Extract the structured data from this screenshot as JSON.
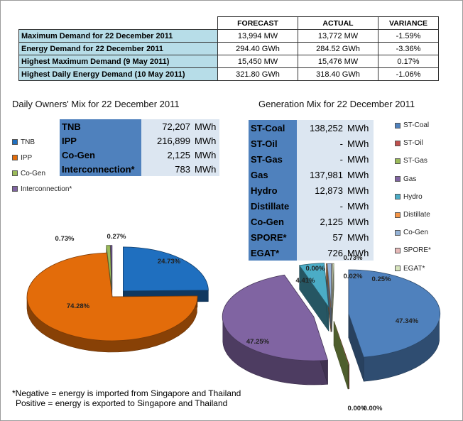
{
  "summary_table": {
    "headers": [
      "",
      "FORECAST",
      "ACTUAL",
      "VARIANCE"
    ],
    "rows": [
      {
        "label": "Maximum Demand for 22 December 2011",
        "forecast": "13,994  MW",
        "actual": "13,772  MW",
        "variance": "-1.59%"
      },
      {
        "label": "Energy Demand for 22 December 2011",
        "forecast": "294.40  GWh",
        "actual": "284.52  GWh",
        "variance": "-3.36%"
      },
      {
        "label": "Highest Maximum Demand (9 May 2011)",
        "forecast": "15,450  MW",
        "actual": "15,476  MW",
        "variance": "0.17%"
      },
      {
        "label": "Highest Daily Energy Demand (10 May 2011)",
        "forecast": "321.80  GWh",
        "actual": "318.40  GWh",
        "variance": "-1.06%"
      }
    ]
  },
  "owners": {
    "title": "Daily Owners' Mix for 22 December 2011",
    "rows": [
      {
        "name": "TNB",
        "value": "72,207",
        "unit": "MWh"
      },
      {
        "name": "IPP",
        "value": "216,899",
        "unit": "MWh"
      },
      {
        "name": "Co-Gen",
        "value": "2,125",
        "unit": "MWh"
      },
      {
        "name": "Interconnection*",
        "value": "783",
        "unit": "MWh"
      }
    ],
    "legend": [
      "TNB",
      "IPP",
      "Co-Gen",
      "Interconnection*"
    ],
    "colors": [
      "#1f6fbf",
      "#e36c0a",
      "#9bbb59",
      "#8064a2"
    ]
  },
  "generation": {
    "title": "Generation Mix for 22 December 2011",
    "rows": [
      {
        "name": "ST-Coal",
        "value": "138,252",
        "unit": "MWh"
      },
      {
        "name": "ST-Oil",
        "value": "-",
        "unit": "MWh"
      },
      {
        "name": "ST-Gas",
        "value": "-",
        "unit": "MWh"
      },
      {
        "name": "Gas",
        "value": "137,981",
        "unit": "MWh"
      },
      {
        "name": "Hydro",
        "value": "12,873",
        "unit": "MWh"
      },
      {
        "name": "Distillate",
        "value": "-",
        "unit": "MWh"
      },
      {
        "name": "Co-Gen",
        "value": "2,125",
        "unit": "MWh"
      },
      {
        "name": "SPORE*",
        "value": "57",
        "unit": "MWh"
      },
      {
        "name": "EGAT*",
        "value": "726",
        "unit": "MWh"
      }
    ],
    "legend": [
      "ST-Coal",
      "ST-Oil",
      "ST-Gas",
      "Gas",
      "Hydro",
      "Distillate",
      "Co-Gen",
      "SPORE*",
      "EGAT*"
    ],
    "colors": [
      "#4f81bd",
      "#c0504d",
      "#9bbb59",
      "#8064a2",
      "#4bacc6",
      "#f79646",
      "#95b3d7",
      "#e6b9b8",
      "#d7e4bd"
    ]
  },
  "chart_data": [
    {
      "type": "pie",
      "title": "Daily Owners' Mix for 22 December 2011",
      "categories": [
        "TNB",
        "IPP",
        "Co-Gen",
        "Interconnection*"
      ],
      "values": [
        24.73,
        74.28,
        0.73,
        0.27
      ],
      "data_labels": [
        "24.73%",
        "74.28%",
        "0.73%",
        "0.27%"
      ],
      "legend_position": "left"
    },
    {
      "type": "pie",
      "title": "Generation Mix for 22 December 2011",
      "categories": [
        "ST-Coal",
        "ST-Oil",
        "ST-Gas",
        "Gas",
        "Hydro",
        "Distillate",
        "Co-Gen",
        "SPORE*",
        "EGAT*"
      ],
      "values": [
        47.34,
        0.0,
        0.0,
        47.25,
        4.41,
        0.0,
        0.73,
        0.02,
        0.25
      ],
      "data_labels": [
        "47.34%",
        "0.00%",
        "0.00%",
        "47.25%",
        "4.41%",
        "0.00%",
        "0.73%",
        "0.02%",
        "0.25%"
      ],
      "legend_position": "right"
    }
  ],
  "note": {
    "line1": "*Negative = energy is imported from Singapore and Thailand",
    "line2": "Positive = energy is exported to Singapore and Thailand"
  }
}
